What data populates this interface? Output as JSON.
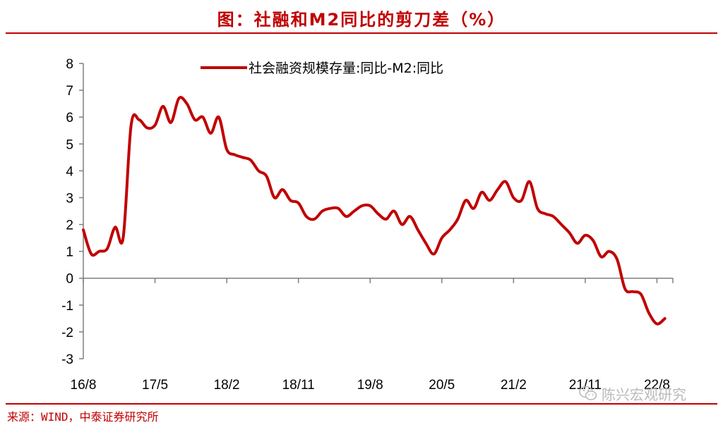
{
  "title": "图：社融和M2同比的剪刀差（%）",
  "source": "来源：WIND，中泰证券研究所",
  "watermark": {
    "text": "陈兴宏观研究",
    "icon": "wechat-icon"
  },
  "colors": {
    "accent": "#C00000",
    "line": "#C00000",
    "axis": "#7f7f7f",
    "watermark": "#b9b9b9"
  },
  "chart_data": {
    "type": "line",
    "title": "图：社融和M2同比的剪刀差（%）",
    "xlabel": "",
    "ylabel": "",
    "ylim": [
      -3,
      8
    ],
    "yticks": [
      "-3",
      "-2",
      "-1",
      "0",
      "1",
      "2",
      "3",
      "4",
      "5",
      "6",
      "7",
      "8"
    ],
    "x_range": [
      "2016-08",
      "2022-10"
    ],
    "xticks": [
      {
        "label": "16/8",
        "date": "2016-08"
      },
      {
        "label": "17/5",
        "date": "2017-05"
      },
      {
        "label": "18/2",
        "date": "2018-02"
      },
      {
        "label": "18/11",
        "date": "2018-11"
      },
      {
        "label": "19/8",
        "date": "2019-08"
      },
      {
        "label": "20/5",
        "date": "2020-05"
      },
      {
        "label": "21/2",
        "date": "2021-02"
      },
      {
        "label": "21/11",
        "date": "2021-11"
      },
      {
        "label": "22/8",
        "date": "2022-08"
      }
    ],
    "grid": false,
    "legend": "top",
    "series": [
      {
        "name": "社会融资规模存量:同比-M2:同比",
        "color": "#C00000",
        "x": [
          "2016-08",
          "2016-09",
          "2016-10",
          "2016-11",
          "2016-12",
          "2017-01",
          "2017-02",
          "2017-03",
          "2017-04",
          "2017-05",
          "2017-06",
          "2017-07",
          "2017-08",
          "2017-09",
          "2017-10",
          "2017-11",
          "2017-12",
          "2018-01",
          "2018-02",
          "2018-03",
          "2018-04",
          "2018-05",
          "2018-06",
          "2018-07",
          "2018-08",
          "2018-09",
          "2018-10",
          "2018-11",
          "2018-12",
          "2019-01",
          "2019-02",
          "2019-03",
          "2019-04",
          "2019-05",
          "2019-06",
          "2019-07",
          "2019-08",
          "2019-09",
          "2019-10",
          "2019-11",
          "2019-12",
          "2020-01",
          "2020-02",
          "2020-03",
          "2020-04",
          "2020-05",
          "2020-06",
          "2020-07",
          "2020-08",
          "2020-09",
          "2020-10",
          "2020-11",
          "2020-12",
          "2021-01",
          "2021-02",
          "2021-03",
          "2021-04",
          "2021-05",
          "2021-06",
          "2021-07",
          "2021-08",
          "2021-09",
          "2021-10",
          "2021-11",
          "2021-12",
          "2022-01",
          "2022-02",
          "2022-03",
          "2022-04",
          "2022-05",
          "2022-06",
          "2022-07",
          "2022-08",
          "2022-09"
        ],
        "values": [
          1.8,
          0.9,
          1.0,
          1.1,
          1.9,
          1.5,
          5.7,
          5.9,
          5.6,
          5.7,
          6.4,
          5.8,
          6.7,
          6.5,
          5.9,
          6.0,
          5.4,
          6.0,
          4.8,
          4.6,
          4.5,
          4.4,
          4.0,
          3.8,
          3.0,
          3.3,
          2.9,
          2.8,
          2.3,
          2.2,
          2.5,
          2.6,
          2.6,
          2.3,
          2.5,
          2.7,
          2.7,
          2.4,
          2.2,
          2.5,
          2.0,
          2.3,
          1.8,
          1.3,
          0.9,
          1.5,
          1.8,
          2.2,
          2.9,
          2.6,
          3.2,
          2.9,
          3.3,
          3.6,
          3.0,
          2.9,
          3.6,
          2.6,
          2.4,
          2.3,
          2.0,
          1.7,
          1.3,
          1.6,
          1.4,
          0.8,
          1.0,
          0.7,
          -0.4,
          -0.5,
          -0.6,
          -1.3,
          -1.7,
          -1.5
        ]
      }
    ]
  }
}
